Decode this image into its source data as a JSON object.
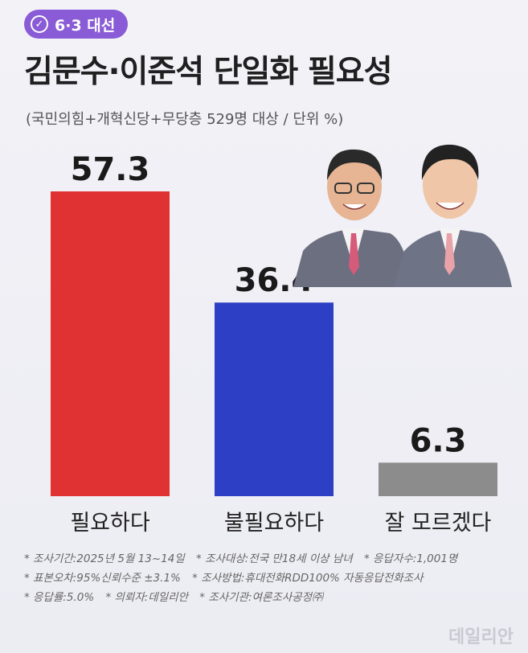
{
  "badge": {
    "icon": "ballot-check-icon",
    "text": "6·3 대선"
  },
  "title": "김문수·이준석 단일화 필요성",
  "subtitle": "(국민의힘+개혁신당+무당층 529명 대상 / 단위 %)",
  "chart_data": {
    "type": "bar",
    "categories": [
      "필요하다",
      "불필요하다",
      "잘 모르겠다"
    ],
    "values": [
      57.3,
      36.4,
      6.3
    ],
    "value_labels": [
      "57.3",
      "36.4",
      "6.3"
    ],
    "colors": [
      "#e03232",
      "#2d3fc4",
      "#8c8c8c"
    ],
    "ylim": [
      0,
      57.3
    ],
    "grid": false,
    "legend": "none"
  },
  "footnotes": [
    [
      "* 조사기간:2025년 5월 13~14일",
      "* 조사대상:전국 만18세 이상 남녀",
      "* 응답자수:1,001명"
    ],
    [
      "* 표본오차:95%신뢰수준 ±3.1%",
      "* 조사방법:휴대전화RDD100% 자동응답전화조사"
    ],
    [
      "* 응답률:5.0%",
      "* 의뢰자:데일리안",
      "* 조사기관:여론조사공정㈜"
    ]
  ],
  "watermark": "데일리안",
  "photo": {
    "icon": "candidate-portraits-icon"
  }
}
